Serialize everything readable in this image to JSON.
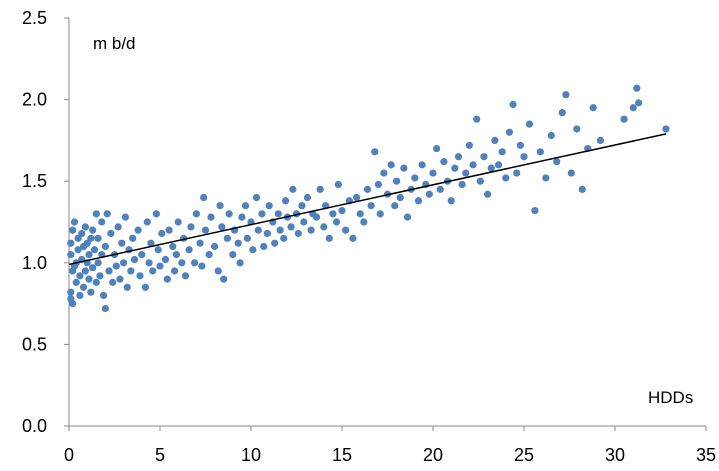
{
  "chart_data": {
    "type": "scatter",
    "ylabel": "m b/d",
    "xlabel": "HDDs",
    "xlim": [
      0,
      35
    ],
    "ylim": [
      0,
      2.5
    ],
    "xticks": [
      "0",
      "5",
      "10",
      "15",
      "20",
      "25",
      "30",
      "35"
    ],
    "yticks": [
      "0.0",
      "0.5",
      "1.0",
      "1.5",
      "2.0",
      "2.5"
    ],
    "grid": false,
    "marker_color": "#4F81BD",
    "trendline": {
      "x1": 0,
      "y1": 0.99,
      "x2": 32.8,
      "y2": 1.79,
      "color": "#000000"
    },
    "points": [
      [
        0.1,
        0.78
      ],
      [
        0.1,
        0.82
      ],
      [
        0.2,
        0.75
      ],
      [
        0.2,
        0.95
      ],
      [
        0.1,
        1.05
      ],
      [
        0.1,
        1.12
      ],
      [
        0.2,
        1.2
      ],
      [
        0.3,
        1.25
      ],
      [
        0.3,
        0.98
      ],
      [
        0.4,
        1.0
      ],
      [
        0.4,
        0.88
      ],
      [
        0.5,
        1.08
      ],
      [
        0.5,
        1.15
      ],
      [
        0.6,
        0.8
      ],
      [
        0.6,
        0.92
      ],
      [
        0.7,
        1.18
      ],
      [
        0.7,
        1.02
      ],
      [
        0.8,
        1.1
      ],
      [
        0.8,
        0.85
      ],
      [
        0.9,
        0.95
      ],
      [
        0.9,
        1.22
      ],
      [
        1.0,
        1.0
      ],
      [
        1.0,
        1.12
      ],
      [
        1.1,
        0.9
      ],
      [
        1.1,
        1.05
      ],
      [
        1.2,
        1.15
      ],
      [
        1.2,
        0.82
      ],
      [
        1.3,
        1.2
      ],
      [
        1.3,
        0.97
      ],
      [
        1.4,
        1.08
      ],
      [
        1.5,
        1.3
      ],
      [
        1.5,
        0.88
      ],
      [
        1.6,
        1.0
      ],
      [
        1.6,
        1.15
      ],
      [
        1.7,
        0.92
      ],
      [
        1.8,
        1.25
      ],
      [
        1.8,
        1.05
      ],
      [
        1.9,
        0.8
      ],
      [
        2.0,
        1.1
      ],
      [
        2.0,
        0.72
      ],
      [
        2.1,
        1.3
      ],
      [
        2.2,
        0.95
      ],
      [
        2.3,
        1.18
      ],
      [
        2.4,
        0.88
      ],
      [
        2.5,
        1.05
      ],
      [
        2.6,
        0.98
      ],
      [
        2.7,
        1.22
      ],
      [
        2.8,
        0.9
      ],
      [
        2.9,
        1.12
      ],
      [
        3.0,
        1.0
      ],
      [
        3.1,
        1.28
      ],
      [
        3.2,
        0.85
      ],
      [
        3.3,
        1.08
      ],
      [
        3.4,
        0.95
      ],
      [
        3.5,
        1.15
      ],
      [
        3.6,
        1.02
      ],
      [
        3.8,
        1.2
      ],
      [
        3.9,
        0.92
      ],
      [
        4.0,
        1.05
      ],
      [
        4.2,
        0.85
      ],
      [
        4.3,
        1.25
      ],
      [
        4.4,
        1.0
      ],
      [
        4.5,
        1.12
      ],
      [
        4.6,
        0.95
      ],
      [
        4.8,
        1.3
      ],
      [
        4.9,
        1.08
      ],
      [
        5.0,
        0.98
      ],
      [
        5.1,
        1.18
      ],
      [
        5.3,
        1.02
      ],
      [
        5.4,
        0.9
      ],
      [
        5.5,
        1.2
      ],
      [
        5.7,
        1.1
      ],
      [
        5.8,
        0.95
      ],
      [
        5.9,
        1.05
      ],
      [
        6.0,
        1.25
      ],
      [
        6.2,
        1.0
      ],
      [
        6.3,
        1.15
      ],
      [
        6.4,
        0.92
      ],
      [
        6.6,
        1.08
      ],
      [
        6.7,
        1.22
      ],
      [
        6.9,
        1.0
      ],
      [
        7.0,
        1.3
      ],
      [
        7.2,
        1.12
      ],
      [
        7.3,
        0.98
      ],
      [
        7.4,
        1.4
      ],
      [
        7.5,
        1.2
      ],
      [
        7.7,
        1.05
      ],
      [
        7.8,
        1.28
      ],
      [
        8.0,
        1.1
      ],
      [
        8.2,
        0.95
      ],
      [
        8.3,
        1.35
      ],
      [
        8.4,
        1.22
      ],
      [
        8.5,
        0.9
      ],
      [
        8.7,
        1.15
      ],
      [
        8.8,
        1.3
      ],
      [
        9.0,
        1.05
      ],
      [
        9.1,
        1.2
      ],
      [
        9.3,
        1.12
      ],
      [
        9.4,
        1.0
      ],
      [
        9.5,
        1.28
      ],
      [
        9.7,
        1.35
      ],
      [
        9.8,
        1.15
      ],
      [
        10.0,
        1.25
      ],
      [
        10.1,
        1.08
      ],
      [
        10.3,
        1.4
      ],
      [
        10.4,
        1.2
      ],
      [
        10.6,
        1.3
      ],
      [
        10.7,
        1.1
      ],
      [
        10.9,
        1.18
      ],
      [
        11.0,
        1.35
      ],
      [
        11.2,
        1.25
      ],
      [
        11.3,
        1.12
      ],
      [
        11.5,
        1.3
      ],
      [
        11.6,
        1.2
      ],
      [
        11.8,
        1.15
      ],
      [
        11.9,
        1.38
      ],
      [
        12.0,
        1.28
      ],
      [
        12.2,
        1.22
      ],
      [
        12.3,
        1.45
      ],
      [
        12.5,
        1.3
      ],
      [
        12.6,
        1.18
      ],
      [
        12.8,
        1.35
      ],
      [
        12.9,
        1.25
      ],
      [
        13.1,
        1.4
      ],
      [
        13.3,
        1.2
      ],
      [
        13.4,
        1.3
      ],
      [
        13.6,
        1.28
      ],
      [
        13.8,
        1.45
      ],
      [
        14.0,
        1.22
      ],
      [
        14.1,
        1.35
      ],
      [
        14.3,
        1.15
      ],
      [
        14.5,
        1.3
      ],
      [
        14.7,
        1.25
      ],
      [
        14.8,
        1.48
      ],
      [
        15.0,
        1.32
      ],
      [
        15.2,
        1.2
      ],
      [
        15.4,
        1.38
      ],
      [
        15.6,
        1.15
      ],
      [
        15.8,
        1.4
      ],
      [
        16.0,
        1.3
      ],
      [
        16.2,
        1.25
      ],
      [
        16.4,
        1.45
      ],
      [
        16.6,
        1.35
      ],
      [
        16.8,
        1.68
      ],
      [
        17.0,
        1.48
      ],
      [
        17.1,
        1.3
      ],
      [
        17.3,
        1.55
      ],
      [
        17.5,
        1.42
      ],
      [
        17.7,
        1.6
      ],
      [
        17.9,
        1.35
      ],
      [
        18.0,
        1.5
      ],
      [
        18.2,
        1.4
      ],
      [
        18.4,
        1.58
      ],
      [
        18.6,
        1.28
      ],
      [
        18.8,
        1.45
      ],
      [
        19.0,
        1.52
      ],
      [
        19.2,
        1.38
      ],
      [
        19.4,
        1.6
      ],
      [
        19.6,
        1.48
      ],
      [
        19.8,
        1.42
      ],
      [
        20.0,
        1.55
      ],
      [
        20.2,
        1.7
      ],
      [
        20.4,
        1.45
      ],
      [
        20.6,
        1.62
      ],
      [
        20.8,
        1.5
      ],
      [
        21.0,
        1.38
      ],
      [
        21.2,
        1.58
      ],
      [
        21.4,
        1.65
      ],
      [
        21.6,
        1.48
      ],
      [
        21.8,
        1.55
      ],
      [
        22.0,
        1.72
      ],
      [
        22.2,
        1.6
      ],
      [
        22.4,
        1.88
      ],
      [
        22.6,
        1.5
      ],
      [
        22.8,
        1.65
      ],
      [
        23.0,
        1.42
      ],
      [
        23.2,
        1.58
      ],
      [
        23.4,
        1.75
      ],
      [
        23.6,
        1.6
      ],
      [
        23.8,
        1.68
      ],
      [
        24.0,
        1.52
      ],
      [
        24.2,
        1.8
      ],
      [
        24.4,
        1.97
      ],
      [
        24.6,
        1.55
      ],
      [
        24.8,
        1.72
      ],
      [
        25.0,
        1.65
      ],
      [
        25.3,
        1.85
      ],
      [
        25.6,
        1.32
      ],
      [
        25.9,
        1.68
      ],
      [
        26.2,
        1.52
      ],
      [
        26.5,
        1.78
      ],
      [
        26.8,
        1.62
      ],
      [
        27.1,
        1.92
      ],
      [
        27.3,
        2.03
      ],
      [
        27.6,
        1.55
      ],
      [
        27.9,
        1.82
      ],
      [
        28.2,
        1.45
      ],
      [
        28.5,
        1.7
      ],
      [
        28.8,
        1.95
      ],
      [
        29.2,
        1.75
      ],
      [
        30.5,
        1.88
      ],
      [
        31.0,
        1.95
      ],
      [
        31.3,
        1.98
      ],
      [
        31.2,
        2.07
      ],
      [
        32.8,
        1.82
      ]
    ]
  }
}
